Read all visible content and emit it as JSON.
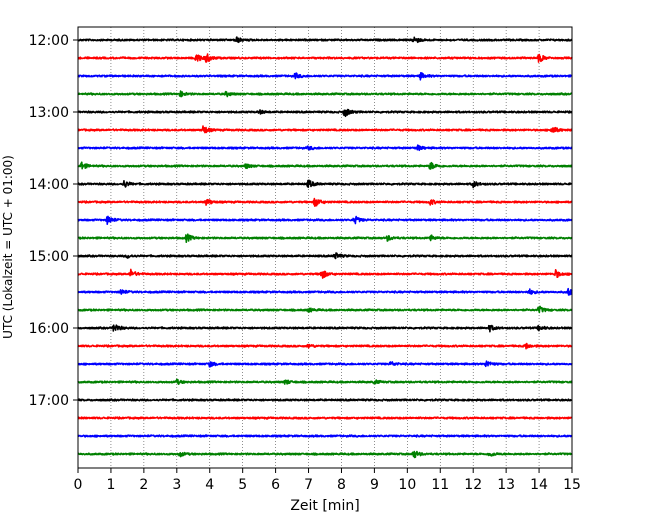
{
  "chart_data": {
    "type": "line",
    "title": "",
    "xlabel": "Zeit  [min]",
    "ylabel": "UTC (Lokalzeit = UTC + 01:00)",
    "xlim": [
      0,
      15
    ],
    "x_ticks": [
      "0",
      "1",
      "2",
      "3",
      "4",
      "5",
      "6",
      "7",
      "8",
      "9",
      "10",
      "11",
      "12",
      "13",
      "14",
      "15"
    ],
    "y_tick_labels": [
      "12:00",
      "13:00",
      "14:00",
      "15:00",
      "16:00",
      "17:00"
    ],
    "trace_interval_min": 15,
    "grid": "vertical dotted at each minute",
    "color_cycle": [
      "#000000",
      "#ff0000",
      "#0000ff",
      "#008000"
    ],
    "series": [
      {
        "start": "12:00",
        "color": "#000000",
        "events": [
          [
            4.8,
            0.35
          ],
          [
            10.2,
            0.45
          ]
        ]
      },
      {
        "start": "12:15",
        "color": "#ff0000",
        "events": [
          [
            3.6,
            0.55
          ],
          [
            3.9,
            0.5
          ],
          [
            14.0,
            0.5
          ]
        ]
      },
      {
        "start": "12:30",
        "color": "#0000ff",
        "events": [
          [
            6.6,
            0.3
          ],
          [
            10.4,
            0.35
          ]
        ]
      },
      {
        "start": "12:45",
        "color": "#008000",
        "events": [
          [
            3.1,
            0.3
          ],
          [
            4.5,
            0.25
          ]
        ]
      },
      {
        "start": "13:00",
        "color": "#000000",
        "events": [
          [
            8.1,
            0.55
          ],
          [
            5.5,
            0.2
          ]
        ]
      },
      {
        "start": "13:15",
        "color": "#ff0000",
        "events": [
          [
            3.8,
            0.5
          ],
          [
            14.4,
            0.45
          ]
        ]
      },
      {
        "start": "13:30",
        "color": "#0000ff",
        "events": [
          [
            10.3,
            0.3
          ],
          [
            7.0,
            0.2
          ]
        ]
      },
      {
        "start": "13:45",
        "color": "#008000",
        "events": [
          [
            0.1,
            0.45
          ],
          [
            10.7,
            0.45
          ],
          [
            5.1,
            0.25
          ]
        ]
      },
      {
        "start": "14:00",
        "color": "#000000",
        "events": [
          [
            1.4,
            0.4
          ],
          [
            7.0,
            0.45
          ],
          [
            12.0,
            0.35
          ]
        ]
      },
      {
        "start": "14:15",
        "color": "#ff0000",
        "events": [
          [
            3.9,
            0.4
          ],
          [
            7.2,
            0.55
          ],
          [
            10.7,
            0.3
          ]
        ]
      },
      {
        "start": "14:30",
        "color": "#0000ff",
        "events": [
          [
            0.9,
            0.5
          ],
          [
            8.4,
            0.45
          ]
        ]
      },
      {
        "start": "14:45",
        "color": "#008000",
        "events": [
          [
            3.3,
            0.45
          ],
          [
            9.4,
            0.3
          ],
          [
            10.7,
            0.3
          ]
        ]
      },
      {
        "start": "15:00",
        "color": "#000000",
        "events": [
          [
            7.8,
            0.4
          ],
          [
            1.5,
            0.2
          ]
        ]
      },
      {
        "start": "15:15",
        "color": "#ff0000",
        "events": [
          [
            1.6,
            0.45
          ],
          [
            7.4,
            0.55
          ],
          [
            14.5,
            0.45
          ]
        ]
      },
      {
        "start": "15:30",
        "color": "#0000ff",
        "events": [
          [
            1.3,
            0.3
          ],
          [
            14.9,
            0.5
          ],
          [
            13.7,
            0.3
          ]
        ]
      },
      {
        "start": "15:45",
        "color": "#008000",
        "events": [
          [
            14.0,
            0.4
          ],
          [
            7.0,
            0.2
          ]
        ]
      },
      {
        "start": "16:00",
        "color": "#000000",
        "events": [
          [
            1.1,
            0.55
          ],
          [
            12.5,
            0.35
          ],
          [
            14.0,
            0.3
          ]
        ]
      },
      {
        "start": "16:15",
        "color": "#ff0000",
        "events": [
          [
            13.6,
            0.3
          ],
          [
            7.0,
            0.2
          ]
        ]
      },
      {
        "start": "16:30",
        "color": "#0000ff",
        "events": [
          [
            4.0,
            0.3
          ],
          [
            12.4,
            0.4
          ],
          [
            9.5,
            0.25
          ]
        ]
      },
      {
        "start": "16:45",
        "color": "#008000",
        "events": [
          [
            3.0,
            0.25
          ],
          [
            6.3,
            0.25
          ],
          [
            9.0,
            0.2
          ]
        ]
      },
      {
        "start": "17:00",
        "color": "#000000",
        "events": []
      },
      {
        "start": "17:15",
        "color": "#ff0000",
        "events": []
      },
      {
        "start": "17:30",
        "color": "#0000ff",
        "events": []
      },
      {
        "start": "17:45",
        "color": "#008000",
        "events": [
          [
            3.1,
            0.25
          ],
          [
            10.2,
            0.45
          ],
          [
            12.5,
            0.3
          ]
        ]
      }
    ]
  }
}
